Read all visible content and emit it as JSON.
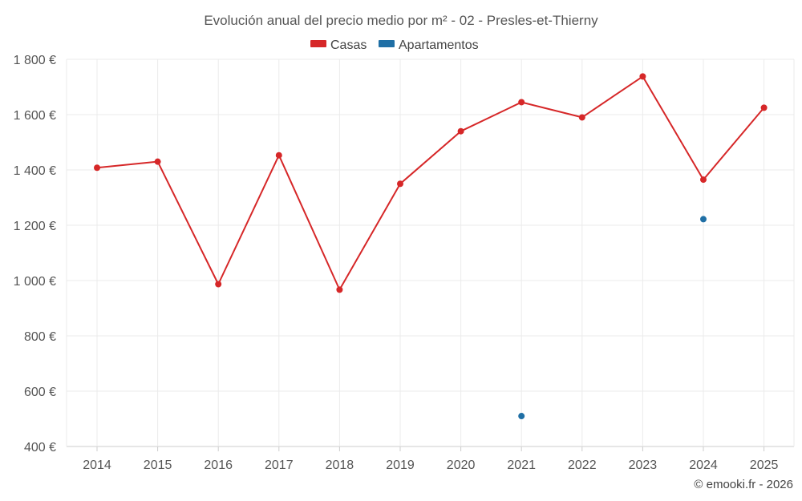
{
  "chart_data": {
    "type": "line",
    "title": "Evolución anual del precio medio por m² - 02 - Presles-et-Thierny",
    "categories": [
      "2014",
      "2015",
      "2016",
      "2017",
      "2018",
      "2019",
      "2020",
      "2021",
      "2022",
      "2023",
      "2024",
      "2025"
    ],
    "y_ticks": [
      "400 €",
      "600 €",
      "800 €",
      "1 000 €",
      "1 200 €",
      "1 400 €",
      "1 600 €",
      "1 800 €"
    ],
    "ylim": [
      400,
      1800
    ],
    "grid": true,
    "legend_position": "top-center",
    "series": [
      {
        "name": "Casas",
        "color": "#d62728",
        "values": [
          1408,
          1430,
          987,
          1453,
          967,
          1350,
          1540,
          1645,
          1590,
          1738,
          1365,
          1625
        ]
      },
      {
        "name": "Apartamentos",
        "color": "#1f6fa5",
        "values": [
          null,
          null,
          null,
          null,
          null,
          null,
          null,
          510,
          null,
          null,
          1222,
          null
        ]
      }
    ]
  },
  "credit": "© emooki.fr - 2026"
}
